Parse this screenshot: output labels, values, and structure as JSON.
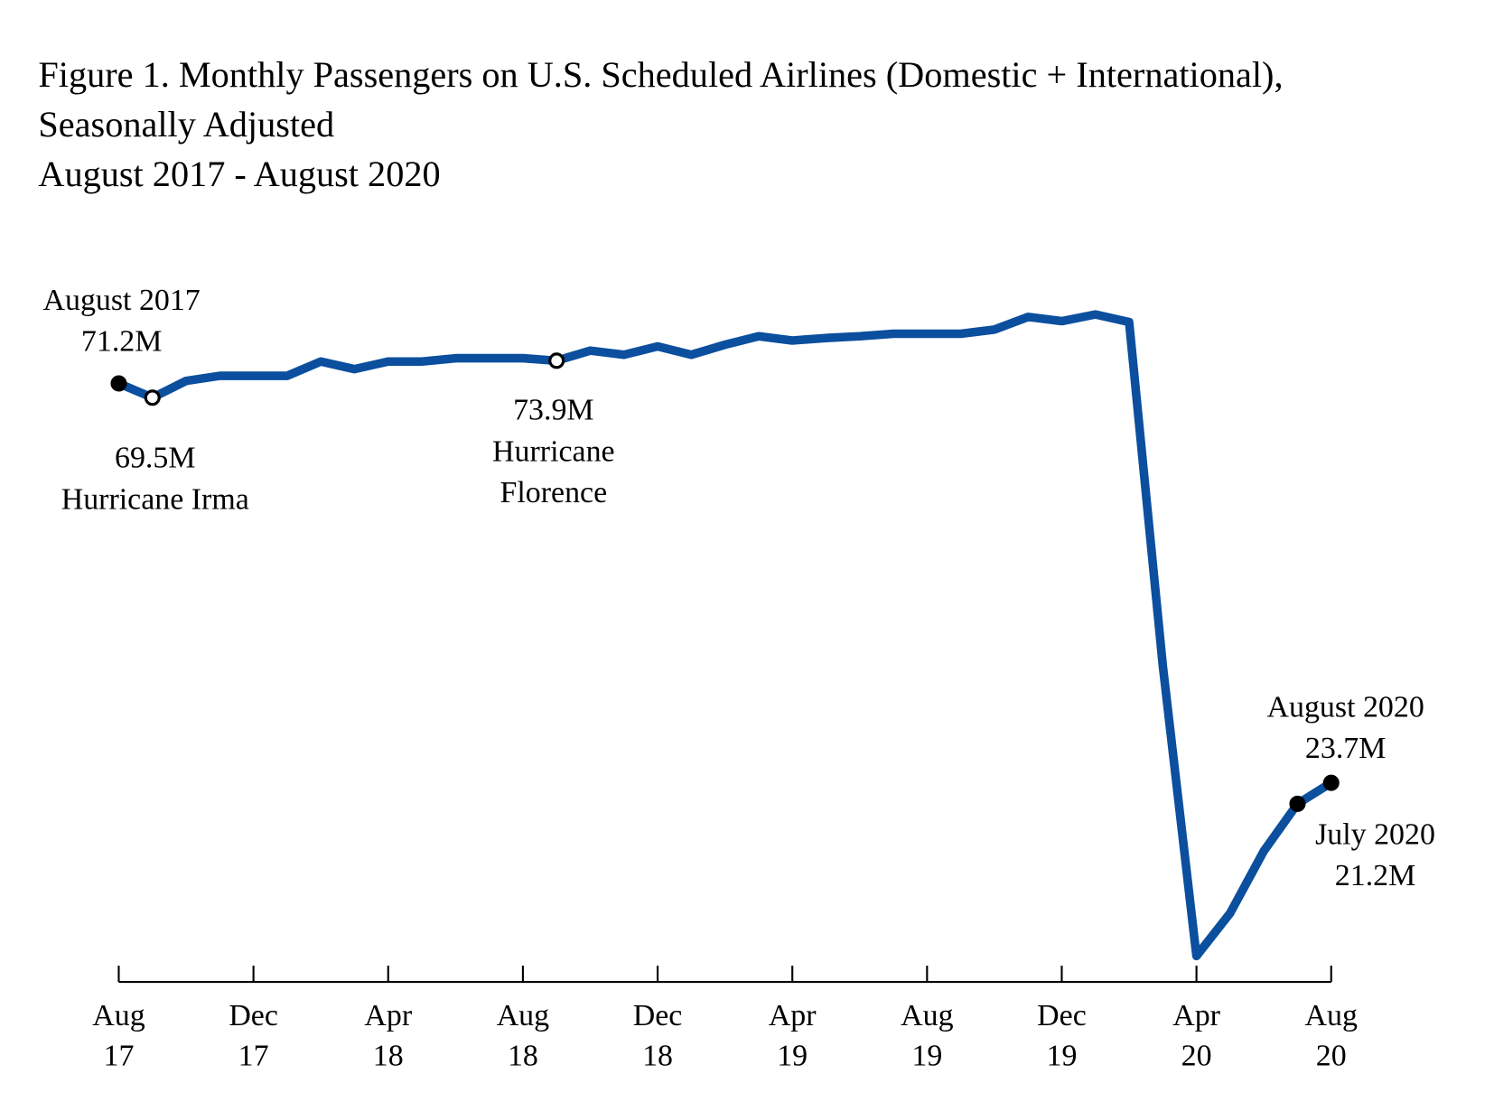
{
  "chart_data": {
    "type": "line",
    "title": "Figure 1. Monthly Passengers on U.S. Scheduled Airlines (Domestic + International),",
    "title_line2": "Seasonally Adjusted",
    "subtitle": "August 2017 - August 2020",
    "xlabel": "",
    "ylabel": "",
    "units": "millions of passengers",
    "x": [
      "2017-08",
      "2017-09",
      "2017-10",
      "2017-11",
      "2017-12",
      "2018-01",
      "2018-02",
      "2018-03",
      "2018-04",
      "2018-05",
      "2018-06",
      "2018-07",
      "2018-08",
      "2018-09",
      "2018-10",
      "2018-11",
      "2018-12",
      "2019-01",
      "2019-02",
      "2019-03",
      "2019-04",
      "2019-05",
      "2019-06",
      "2019-07",
      "2019-08",
      "2019-09",
      "2019-10",
      "2019-11",
      "2019-12",
      "2020-01",
      "2020-02",
      "2020-03",
      "2020-04",
      "2020-05",
      "2020-06",
      "2020-07",
      "2020-08"
    ],
    "values": [
      71.2,
      69.5,
      71.5,
      72.1,
      72.1,
      72.1,
      73.8,
      72.9,
      73.8,
      73.8,
      74.2,
      74.2,
      74.2,
      73.9,
      75.1,
      74.6,
      75.6,
      74.6,
      75.8,
      76.8,
      76.3,
      76.6,
      76.8,
      77.1,
      77.1,
      77.1,
      77.6,
      79.1,
      78.6,
      79.4,
      78.5,
      37.6,
      3.1,
      8.2,
      15.6,
      21.2,
      23.7
    ],
    "ylim": [
      0,
      82
    ],
    "grid": false,
    "line_color": "#0b4f9e",
    "x_ticks": [
      {
        "month": "Aug",
        "year": "17",
        "index": 0
      },
      {
        "month": "Dec",
        "year": "17",
        "index": 4
      },
      {
        "month": "Apr",
        "year": "18",
        "index": 8
      },
      {
        "month": "Aug",
        "year": "18",
        "index": 12
      },
      {
        "month": "Dec",
        "year": "18",
        "index": 16
      },
      {
        "month": "Apr",
        "year": "19",
        "index": 20
      },
      {
        "month": "Aug",
        "year": "19",
        "index": 24
      },
      {
        "month": "Dec",
        "year": "19",
        "index": 28
      },
      {
        "month": "Apr",
        "year": "20",
        "index": 32
      },
      {
        "month": "Aug",
        "year": "20",
        "index": 36
      }
    ],
    "annotations": [
      {
        "index": 0,
        "marker": "filled",
        "lines": [
          "August 2017",
          "71.2M"
        ],
        "pos": "above"
      },
      {
        "index": 1,
        "marker": "open",
        "lines": [
          "69.5M",
          "Hurricane Irma"
        ],
        "pos": "below"
      },
      {
        "index": 13,
        "marker": "open",
        "lines": [
          "73.9M",
          "Hurricane",
          "Florence"
        ],
        "pos": "below"
      },
      {
        "index": 36,
        "marker": "filled",
        "lines": [
          "August 2020",
          "23.7M"
        ],
        "pos": "above"
      },
      {
        "index": 35,
        "marker": "filled",
        "lines": [
          "July 2020",
          "21.2M"
        ],
        "pos": "below-right"
      }
    ]
  }
}
